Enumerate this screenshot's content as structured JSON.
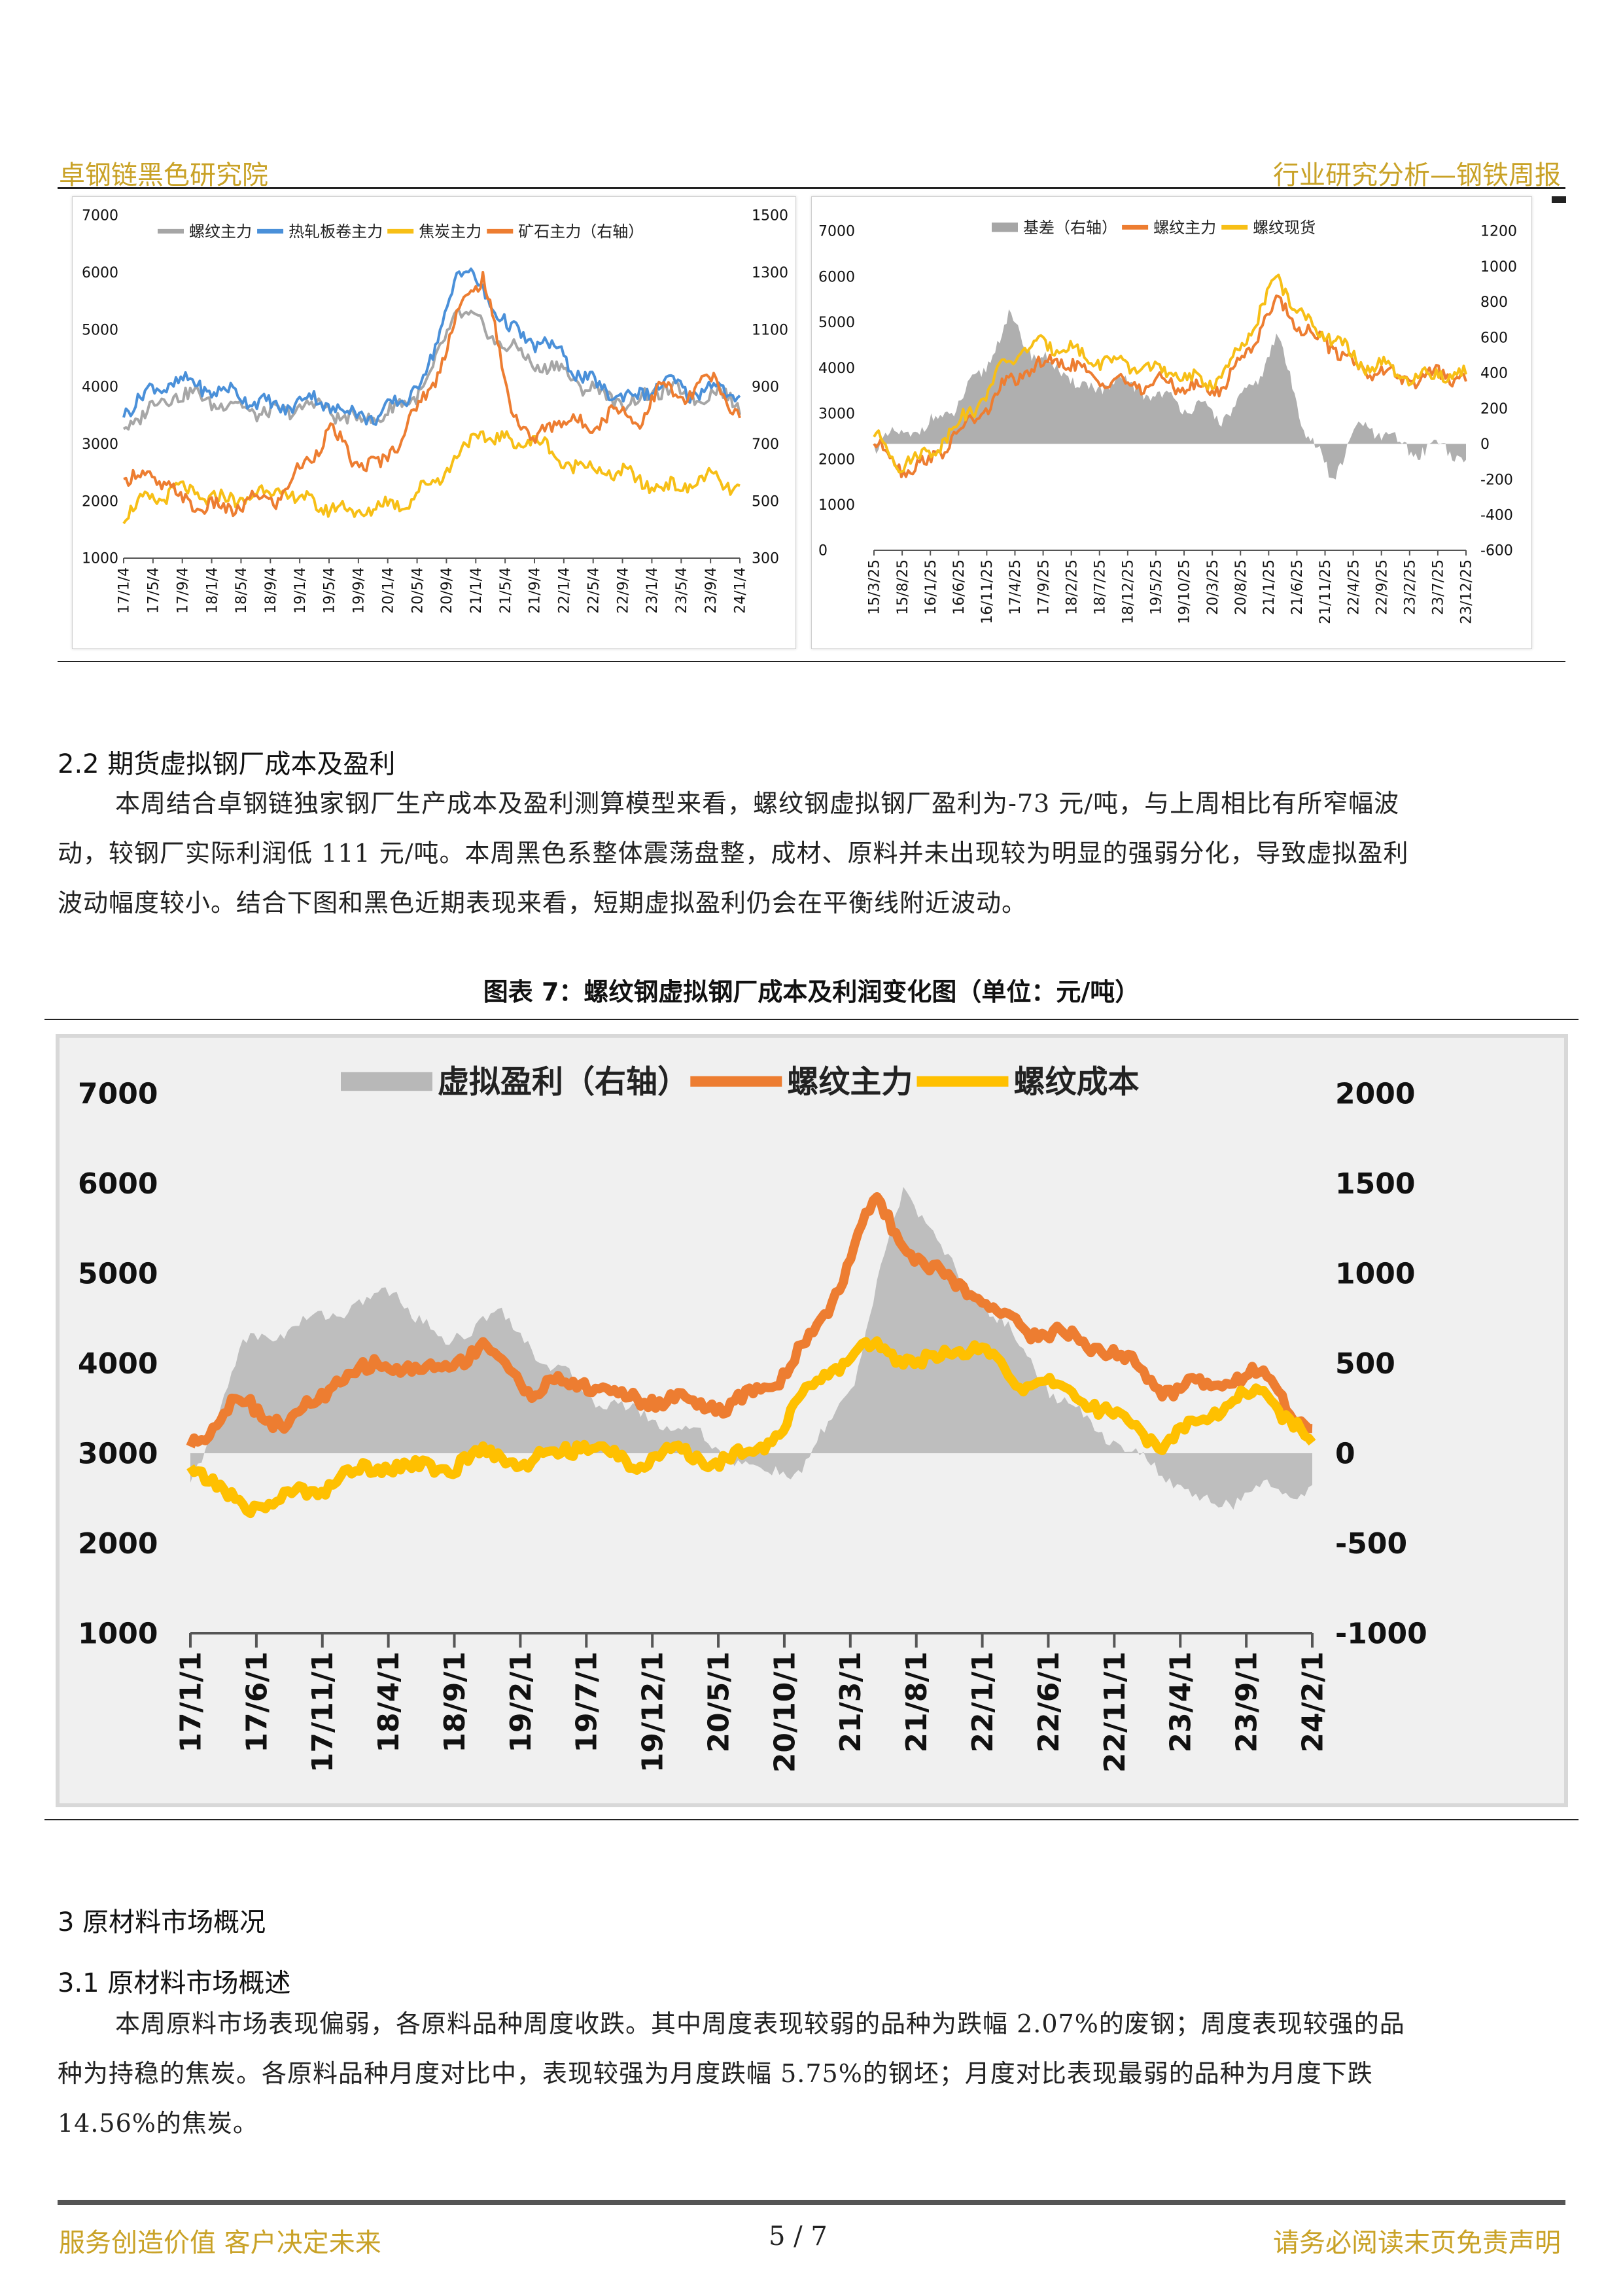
{
  "header": {
    "left": "卓钢链黑色研究院",
    "right": "行业研究分析—钢铁周报"
  },
  "chart_left": {
    "type": "line",
    "legend": [
      "螺纹主力",
      "热轧板卷主力",
      "焦炭主力",
      "矿石主力（右轴）"
    ],
    "colors": {
      "螺纹主力": "#a6a6a6",
      "热轧板卷主力": "#4a90d9",
      "焦炭主力": "#f7bf16",
      "矿石主力（右轴）": "#ed7d31"
    },
    "yleft_ticks": [
      "7000",
      "6000",
      "5000",
      "4000",
      "3000",
      "2000",
      "1000"
    ],
    "yright_ticks": [
      "1500",
      "1300",
      "1100",
      "900",
      "700",
      "500",
      "300"
    ],
    "ylim_left": [
      1000,
      7000
    ],
    "ylim_right": [
      300,
      1500
    ],
    "x_ticks": [
      "17/1/4",
      "17/5/4",
      "17/9/4",
      "18/1/4",
      "18/5/4",
      "18/9/4",
      "19/1/4",
      "19/5/4",
      "19/9/4",
      "20/1/4",
      "20/5/4",
      "20/9/4",
      "21/1/4",
      "21/5/4",
      "21/9/4",
      "22/1/4",
      "22/5/4",
      "22/9/4",
      "23/1/4",
      "23/5/4",
      "23/9/4",
      "24/1/4"
    ],
    "series": [
      {
        "name": "螺纹主力",
        "axis": "left",
        "anchors": [
          3300,
          3600,
          3900,
          3800,
          3700,
          3600,
          3500,
          3700,
          3600,
          3400,
          3500,
          3700,
          4200,
          5400,
          5000,
          4700,
          4400,
          4300,
          4000,
          3800,
          3700,
          4000,
          3800,
          3900,
          3700
        ]
      },
      {
        "name": "热轧板卷主力",
        "axis": "left",
        "anchors": [
          3600,
          3900,
          4100,
          4000,
          3900,
          3800,
          3600,
          3800,
          3700,
          3500,
          3500,
          3800,
          4400,
          6100,
          5700,
          5000,
          4800,
          4600,
          4100,
          3900,
          3800,
          4100,
          3900,
          4000,
          3800
        ]
      },
      {
        "name": "焦炭主力",
        "axis": "left",
        "anchors": [
          1800,
          2000,
          2200,
          2100,
          2000,
          2100,
          2200,
          2000,
          1900,
          1800,
          1900,
          2000,
          2300,
          2800,
          3200,
          3000,
          3100,
          2700,
          2600,
          2500,
          2400,
          2200,
          2300,
          2400,
          2200
        ]
      },
      {
        "name": "矿石主力（右轴）",
        "axis": "right",
        "anchors": [
          560,
          600,
          520,
          480,
          470,
          500,
          510,
          620,
          750,
          640,
          620,
          760,
          900,
          1150,
          1300,
          850,
          700,
          800,
          750,
          820,
          780,
          900,
          860,
          940,
          770
        ]
      }
    ]
  },
  "chart_right": {
    "type": "line",
    "legend": [
      "基差（右轴）",
      "螺纹主力",
      "螺纹现货"
    ],
    "colors": {
      "基差（右轴）": "#a6a6a6",
      "螺纹主力": "#ed7d31",
      "螺纹现货": "#f7bf16"
    },
    "yleft_ticks": [
      "7000",
      "6000",
      "5000",
      "4000",
      "3000",
      "2000",
      "1000",
      "0"
    ],
    "yright_ticks": [
      "1200",
      "1000",
      "800",
      "600",
      "400",
      "200",
      "0",
      "-200",
      "-400",
      "-600"
    ],
    "ylim_left": [
      0,
      7000
    ],
    "ylim_right": [
      -600,
      1200
    ],
    "x_ticks": [
      "15/3/25",
      "15/8/25",
      "16/1/25",
      "16/6/25",
      "16/11/25",
      "17/4/25",
      "17/9/25",
      "18/2/25",
      "18/7/25",
      "18/12/25",
      "19/5/25",
      "19/10/25",
      "20/3/25",
      "20/8/25",
      "21/1/25",
      "21/6/25",
      "21/11/25",
      "22/4/25",
      "22/9/25",
      "23/2/25",
      "23/7/25",
      "23/12/25"
    ],
    "series": [
      {
        "name": "基差（右轴）",
        "axis": "right",
        "anchors": [
          0,
          50,
          100,
          200,
          400,
          700,
          500,
          400,
          300,
          350,
          300,
          250,
          200,
          150,
          300,
          600,
          100,
          -200,
          100,
          50,
          -50,
          0,
          -100
        ]
      },
      {
        "name": "螺纹主力",
        "axis": "left",
        "anchors": [
          2400,
          1800,
          1900,
          2500,
          3000,
          3700,
          4000,
          4200,
          3800,
          3700,
          3600,
          3700,
          3500,
          3600,
          4500,
          5500,
          4800,
          4500,
          4000,
          3900,
          3700,
          3900,
          3700
        ]
      },
      {
        "name": "螺纹现货",
        "axis": "left",
        "anchors": [
          2500,
          1900,
          2100,
          2700,
          3300,
          4200,
          4500,
          4500,
          4200,
          4100,
          4000,
          3900,
          3700,
          3800,
          4800,
          6000,
          5000,
          4700,
          4100,
          4000,
          3700,
          3900,
          3800
        ]
      }
    ]
  },
  "section_2_2": {
    "title": "2.2 期货虚拟钢厂成本及盈利",
    "lines": [
      "本周结合卓钢链独家钢厂生产成本及盈利测算模型来看，螺纹钢虚拟钢厂盈利为-73 元/吨，与上周相比有所窄幅波",
      "动，较钢厂实际利润低 111 元/吨。本周黑色系整体震荡盘整，成材、原料并未出现较为明显的强弱分化，导致虚拟盈利",
      "波动幅度较小。结合下图和黑色近期表现来看，短期虚拟盈利仍会在平衡线附近波动。"
    ]
  },
  "figure7_caption": "图表 7：螺纹钢虚拟钢厂成本及利润变化图（单位：元/吨）",
  "chart_big": {
    "type": "line",
    "legend": [
      "虚拟盈利（右轴）",
      "螺纹主力",
      "螺纹成本"
    ],
    "colors": {
      "虚拟盈利（右轴）": "#b8b8b8",
      "螺纹主力": "#ed7d31",
      "螺纹成本": "#ffc000"
    },
    "yleft_ticks": [
      "7000",
      "6000",
      "5000",
      "4000",
      "3000",
      "2000",
      "1000"
    ],
    "yright_ticks": [
      "2000",
      "1500",
      "1000",
      "500",
      "0",
      "-500",
      "-1000"
    ],
    "ylim_left": [
      1000,
      7000
    ],
    "ylim_right": [
      -1000,
      2000
    ],
    "x_ticks": [
      "17/1/1",
      "17/6/1",
      "17/11/1",
      "18/4/1",
      "18/9/1",
      "19/2/1",
      "19/7/1",
      "19/12/1",
      "20/5/1",
      "20/10/1",
      "21/3/1",
      "21/8/1",
      "22/1/1",
      "22/6/1",
      "22/11/1",
      "23/4/1",
      "23/9/1",
      "24/2/1"
    ],
    "series": [
      {
        "name": "虚拟盈利（右轴）",
        "axis": "right",
        "anchors": [
          -200,
          600,
          700,
          800,
          900,
          600,
          800,
          500,
          300,
          200,
          100,
          -100,
          -100,
          400,
          1500,
          1000,
          700,
          300,
          100,
          -100,
          -300,
          -200,
          -200
        ]
      },
      {
        "name": "螺纹主力",
        "axis": "left",
        "anchors": [
          3100,
          3600,
          3300,
          3800,
          4000,
          3900,
          4200,
          3700,
          3800,
          3600,
          3600,
          3500,
          3800,
          4500,
          5800,
          5100,
          4800,
          4400,
          4300,
          4100,
          3700,
          3800,
          3900,
          3200
        ]
      },
      {
        "name": "螺纹成本",
        "axis": "left",
        "anchors": [
          2900,
          2400,
          2500,
          2700,
          2900,
          2800,
          3000,
          2900,
          3100,
          2900,
          3000,
          2900,
          3200,
          3900,
          4200,
          4000,
          4200,
          3800,
          3700,
          3400,
          3100,
          3500,
          3700,
          3100
        ]
      }
    ]
  },
  "section_3": {
    "title": "3 原材料市场概况"
  },
  "section_3_1": {
    "title": "3.1 原材料市场概述",
    "lines": [
      "本周原料市场表现偏弱，各原料品种周度收跌。其中周度表现较弱的品种为跌幅 2.07%的废钢；周度表现较强的品",
      "种为持稳的焦炭。各原料品种月度对比中，表现较强为月度跌幅 5.75%的钢坯；月度对比表现最弱的品种为月度下跌",
      "14.56%的焦炭。"
    ]
  },
  "footer": {
    "left": "服务创造价值  客户决定未来",
    "page": "5  /  7",
    "right": "请务必阅读末页免责声明"
  }
}
